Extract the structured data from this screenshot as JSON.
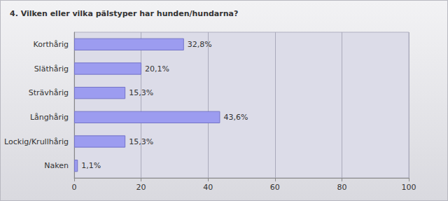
{
  "chart_data": {
    "type": "bar",
    "orientation": "horizontal",
    "title": "4. Vilken eller vilka pälstyper har hunden/hundarna?",
    "categories": [
      "Korthårig",
      "Släthårig",
      "Strävhårig",
      "Långhårig",
      "Lockig/Krullhårig",
      "Naken"
    ],
    "values": [
      32.8,
      20.1,
      15.3,
      43.6,
      15.3,
      1.1
    ],
    "value_labels": [
      "32,8%",
      "20,1%",
      "15,3%",
      "43,6%",
      "15,3%",
      "1,1%"
    ],
    "data_labels": true,
    "color": "#9c9cf0",
    "xlim": [
      0,
      100
    ],
    "xticks": [
      0,
      20,
      40,
      60,
      80,
      100
    ],
    "grid": true
  }
}
